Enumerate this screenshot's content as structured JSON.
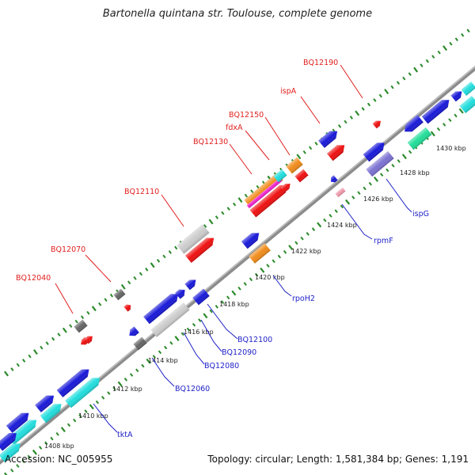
{
  "title": "Bartonella quintana str. Toulouse, complete genome",
  "footer": {
    "accession": "Accession: NC_005955",
    "summary": "Topology: circular; Length: 1,581,384 bp; Genes: 1,191"
  },
  "colors": {
    "backbone": "#8c8c8c",
    "ticks": "#2a8a2a",
    "label_upper": "#e0201e",
    "label_lower": "#1f22c8",
    "blue": "#1a1ad8",
    "red": "#ee1111",
    "cyan": "#22dddd",
    "gray": "#666666",
    "lightgray": "#cccccc",
    "orange": "#f08c1c",
    "purple": "#7c72d2",
    "green": "#22dd99",
    "pink": "#ee99aa",
    "magenta": "#ee22cc"
  },
  "kbp_labels": [
    "1408 kbp",
    "1410 kbp",
    "1412 kbp",
    "1414 kbp",
    "1416 kbp",
    "1418 kbp",
    "1420 kbp",
    "1422 kbp",
    "1424 kbp",
    "1426 kbp",
    "1428 kbp",
    "1430 kbp"
  ],
  "upper_labels": [
    "BQ12040",
    "BQ12070",
    "BQ12110",
    "BQ12130",
    "fdxA",
    "BQ12150",
    "ispA",
    "BQ12190"
  ],
  "lower_labels": [
    "tktA",
    "BQ12060",
    "BQ12080",
    "BQ12090",
    "BQ12100",
    "rpoH2",
    "rpmF",
    "ispG"
  ]
}
